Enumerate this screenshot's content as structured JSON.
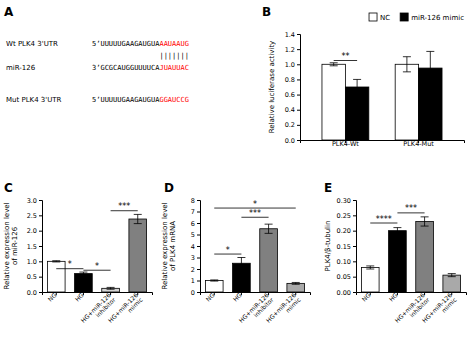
{
  "chart_data": [
    {
      "type": "text",
      "title": "A",
      "annotations": [
        {
          "label": "Wt PLK4 3'UTR",
          "sequence": "5’UUUUUGAAGAUGUA",
          "site": "AAUAAUG",
          "color": "red"
        },
        {
          "pairing": "|||||||"
        },
        {
          "label": "miR-126",
          "sequence": "3’GCGCAUGGUUUUCA",
          "site": "JUAUUAC",
          "color": "red"
        },
        {
          "label": "Mut PLK4 3'UTR",
          "sequence": "5’UUUUUGAAGAUGUA",
          "site": "GGAUCCG",
          "color": "red"
        }
      ]
    },
    {
      "type": "bar",
      "title": "B",
      "categories": [
        "PLK4-Wt",
        "PLK4-Mut"
      ],
      "series": [
        {
          "name": "NC",
          "color": "white",
          "values": [
            1.0,
            1.0
          ],
          "errors": [
            0.02,
            0.1
          ]
        },
        {
          "name": "miR-126 mimic",
          "color": "black",
          "values": [
            0.7,
            0.95
          ],
          "errors": [
            0.1,
            0.22
          ]
        }
      ],
      "ylabel": "Relative luciferase activity",
      "ylim": [
        0,
        1.4
      ],
      "yticks": [
        {
          "value": 0.0,
          "label": "0.0"
        },
        {
          "value": 0.2,
          "label": "0.2"
        },
        {
          "value": 0.4,
          "label": "0.4"
        },
        {
          "value": 0.6,
          "label": "0.6"
        },
        {
          "value": 0.8,
          "label": "0.8"
        },
        {
          "value": 1.0,
          "label": "1.0"
        },
        {
          "value": 1.2,
          "label": "1.2"
        },
        {
          "value": 1.4,
          "label": "1.4"
        }
      ],
      "legend": "upper right",
      "annotations": [
        {
          "text": "**",
          "from": "PLK4-Wt",
          "to": "PLK4-Wt",
          "y": 1.05
        }
      ]
    },
    {
      "type": "bar",
      "title": "C",
      "categories": [
        "NG",
        "HG",
        "HG+miR-126\ninhibitor",
        "HG+miR-126\nmimic"
      ],
      "values": [
        1.0,
        0.6,
        0.12,
        2.38
      ],
      "errors": [
        0.02,
        0.05,
        0.03,
        0.15
      ],
      "colors": [
        "white",
        "black",
        "lightgray",
        "gray"
      ],
      "ylabel": "Relative expression level\nof miR-126",
      "ylim": [
        0,
        3.0
      ],
      "yticks": [
        {
          "value": 0.0,
          "label": "0.0"
        },
        {
          "value": 0.5,
          "label": "0.5"
        },
        {
          "value": 1.0,
          "label": "1.0"
        },
        {
          "value": 1.5,
          "label": "1.5"
        },
        {
          "value": 2.0,
          "label": "2.0"
        },
        {
          "value": 2.5,
          "label": "2.5"
        },
        {
          "value": 3.0,
          "label": "3.0"
        }
      ],
      "annotations": [
        {
          "text": "*",
          "from": "NG",
          "to": "HG",
          "y": 0.76
        },
        {
          "text": "*",
          "from": "HG",
          "to": "HG+miR-126\ninhibitor",
          "y": 0.71
        },
        {
          "text": "***",
          "from": "HG+miR-126\ninhibitor",
          "to": "HG+miR-126\nmimic",
          "y": 2.65
        }
      ]
    },
    {
      "type": "bar",
      "title": "D",
      "categories": [
        "NG",
        "HG",
        "HG+miR-126\ninhibitor",
        "HG+miR-126\nmimic"
      ],
      "values": [
        1.0,
        2.5,
        5.5,
        0.75
      ],
      "errors": [
        0.05,
        0.5,
        0.4,
        0.08
      ],
      "colors": [
        "white",
        "black",
        "gray",
        "darkgray"
      ],
      "ylabel": "Relative expression level\nof PLK4 mRNA",
      "ylim": [
        0,
        8
      ],
      "yticks": [
        0,
        1,
        2,
        3,
        4,
        5,
        6,
        7,
        8
      ],
      "annotations": [
        {
          "text": "*",
          "from": "NG",
          "to": "HG",
          "y": 3.3
        },
        {
          "text": "***",
          "from": "HG",
          "to": "HG+miR-126\ninhibitor",
          "y": 6.5
        },
        {
          "text": "*",
          "from": "NG",
          "to": "HG+miR-126\nmimic",
          "y": 7.3
        }
      ]
    },
    {
      "type": "bar",
      "title": "E",
      "categories": [
        "NG",
        "HG",
        "HG+miR-126\ninhibitor",
        "HG+miR-126\nmimic"
      ],
      "values": [
        0.08,
        0.2,
        0.23,
        0.055
      ],
      "errors": [
        0.005,
        0.01,
        0.015,
        0.005
      ],
      "colors": [
        "white",
        "black",
        "gray",
        "darkgray"
      ],
      "ylabel": "PLK4/β-tubulin",
      "ylim": [
        0,
        0.3
      ],
      "yticks": [
        {
          "value": 0.0,
          "label": "0.00"
        },
        {
          "value": 0.05,
          "label": "0.05"
        },
        {
          "value": 0.1,
          "label": "0.10"
        },
        {
          "value": 0.15,
          "label": "0.15"
        },
        {
          "value": 0.2,
          "label": "0.20"
        },
        {
          "value": 0.25,
          "label": "0.25"
        },
        {
          "value": 0.3,
          "label": "0.30"
        }
      ],
      "annotations": [
        {
          "text": "****",
          "from": "NG",
          "to": "HG",
          "y": 0.225
        },
        {
          "text": "***",
          "from": "HG",
          "to": "HG+miR-126\ninhibitor",
          "y": 0.258
        }
      ]
    }
  ]
}
